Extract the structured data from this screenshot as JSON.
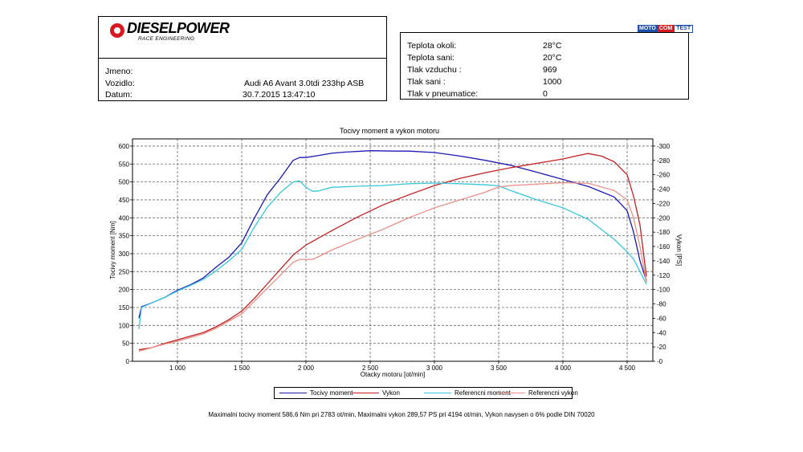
{
  "brand": {
    "name": "DIESELPOWER",
    "subtitle": "RACE ENGINEERING",
    "badge": [
      "MOTO",
      "COM",
      "TEST"
    ]
  },
  "vehicle_info": {
    "jmeno_label": "Jmeno:",
    "vozidlo_label": "Vozidlo:",
    "vozidlo_value": "Audi A6 Avant 3.0tdi 233hp ASB",
    "datum_label": "Datum:",
    "datum_value": "30.7.2015 13:47:10"
  },
  "conditions": [
    {
      "label": "Teplota okoli:",
      "value": "28°C"
    },
    {
      "label": "Teplota sani:",
      "value": "20°C"
    },
    {
      "label": "Tlak vzduchu :",
      "value": "969"
    },
    {
      "label": "Tlak sani :",
      "value": "1000"
    },
    {
      "label": "Tlak v pneumatice:",
      "value": "0"
    }
  ],
  "colors": {
    "torque": "#1a1ab0",
    "power": "#c42020",
    "ref_torque": "#38c8dc",
    "ref_power": "#e89088",
    "grid": "#6a6a6a"
  },
  "chart_data": {
    "type": "line",
    "title": "Tocivy moment a vykon motoru",
    "xlabel": "Otacky motoru [ot/min]",
    "ylabel_left": "Tocivy moment [Nm]",
    "ylabel_right": "Vykon [PS]",
    "xlim": [
      650,
      4700
    ],
    "ylim_left": [
      0,
      620
    ],
    "ylim_right": [
      0,
      310
    ],
    "xticks": [
      "1 000",
      "1 500",
      "2 000",
      "2 500",
      "3 000",
      "3 500",
      "4 000",
      "4 500"
    ],
    "yticks_left": [
      "0",
      "50",
      "100",
      "150",
      "200",
      "250",
      "300",
      "350",
      "400",
      "450",
      "500",
      "550",
      "600"
    ],
    "yticks_right": [
      "0",
      "20",
      "40",
      "60",
      "80",
      "100",
      "120",
      "140",
      "160",
      "180",
      "200",
      "220",
      "240",
      "260",
      "280",
      "300"
    ],
    "grid": true,
    "series": [
      {
        "name": "Tocivy moment",
        "axis": "left",
        "x": [
          700,
          720,
          800,
          900,
          1000,
          1100,
          1200,
          1300,
          1400,
          1500,
          1600,
          1700,
          1800,
          1900,
          1950,
          2000,
          2100,
          2200,
          2300,
          2500,
          2700,
          2800,
          3000,
          3200,
          3400,
          3600,
          3800,
          4000,
          4200,
          4400,
          4500,
          4550,
          4600,
          4650
        ],
        "y": [
          120,
          152,
          163,
          178,
          198,
          213,
          232,
          262,
          290,
          330,
          400,
          465,
          510,
          560,
          568,
          568,
          574,
          580,
          583,
          587,
          586,
          586,
          582,
          572,
          560,
          546,
          527,
          507,
          487,
          458,
          420,
          360,
          280,
          225
        ]
      },
      {
        "name": "Vykon",
        "axis": "right",
        "x": [
          700,
          800,
          900,
          1000,
          1100,
          1200,
          1300,
          1400,
          1500,
          1600,
          1700,
          1800,
          1900,
          2000,
          2100,
          2200,
          2400,
          2600,
          2800,
          3000,
          3200,
          3400,
          3600,
          3800,
          4000,
          4100,
          4194,
          4300,
          4400,
          4500,
          4550,
          4600,
          4650
        ],
        "y": [
          16,
          19,
          25,
          30,
          35,
          40,
          48,
          58,
          70,
          88,
          108,
          128,
          148,
          162,
          172,
          182,
          201,
          218,
          232,
          245,
          255,
          263,
          270,
          276,
          282,
          286,
          289.6,
          286,
          278,
          260,
          230,
          190,
          118
        ]
      },
      {
        "name": "Referencni moment",
        "axis": "left",
        "x": [
          700,
          720,
          800,
          900,
          1000,
          1100,
          1200,
          1300,
          1400,
          1500,
          1600,
          1700,
          1800,
          1900,
          1950,
          2000,
          2050,
          2100,
          2200,
          2400,
          2600,
          2800,
          3000,
          3200,
          3400,
          3500,
          3600,
          3800,
          4000,
          4200,
          4400,
          4500,
          4550,
          4600,
          4650
        ],
        "y": [
          90,
          150,
          163,
          178,
          196,
          211,
          228,
          252,
          280,
          312,
          375,
          430,
          470,
          500,
          503,
          485,
          474,
          475,
          485,
          488,
          490,
          495,
          497,
          495,
          492,
          489,
          475,
          450,
          428,
          395,
          340,
          305,
          285,
          250,
          215
        ]
      },
      {
        "name": "Referencni vykon",
        "axis": "right",
        "x": [
          700,
          800,
          900,
          1000,
          1100,
          1200,
          1300,
          1400,
          1500,
          1600,
          1700,
          1800,
          1900,
          1950,
          2000,
          2050,
          2100,
          2200,
          2400,
          2600,
          2800,
          3000,
          3200,
          3400,
          3500,
          3600,
          3800,
          4000,
          4200,
          4400,
          4500,
          4550,
          4600,
          4650
        ],
        "y": [
          14,
          19,
          24,
          28,
          33,
          38,
          46,
          56,
          66,
          84,
          102,
          120,
          138,
          142,
          142,
          142,
          146,
          155,
          170,
          184,
          200,
          214,
          225,
          236,
          243,
          245,
          247,
          249,
          248,
          238,
          225,
          200,
          160,
          110
        ]
      }
    ]
  },
  "footer": "Maximalni tocivy moment 586,6 Nm pri 2783 ot/min,  Maximalni vykon 289,57 PS pri 4194 ot/min,  Vykon navysen o 6% podle DIN 70020"
}
